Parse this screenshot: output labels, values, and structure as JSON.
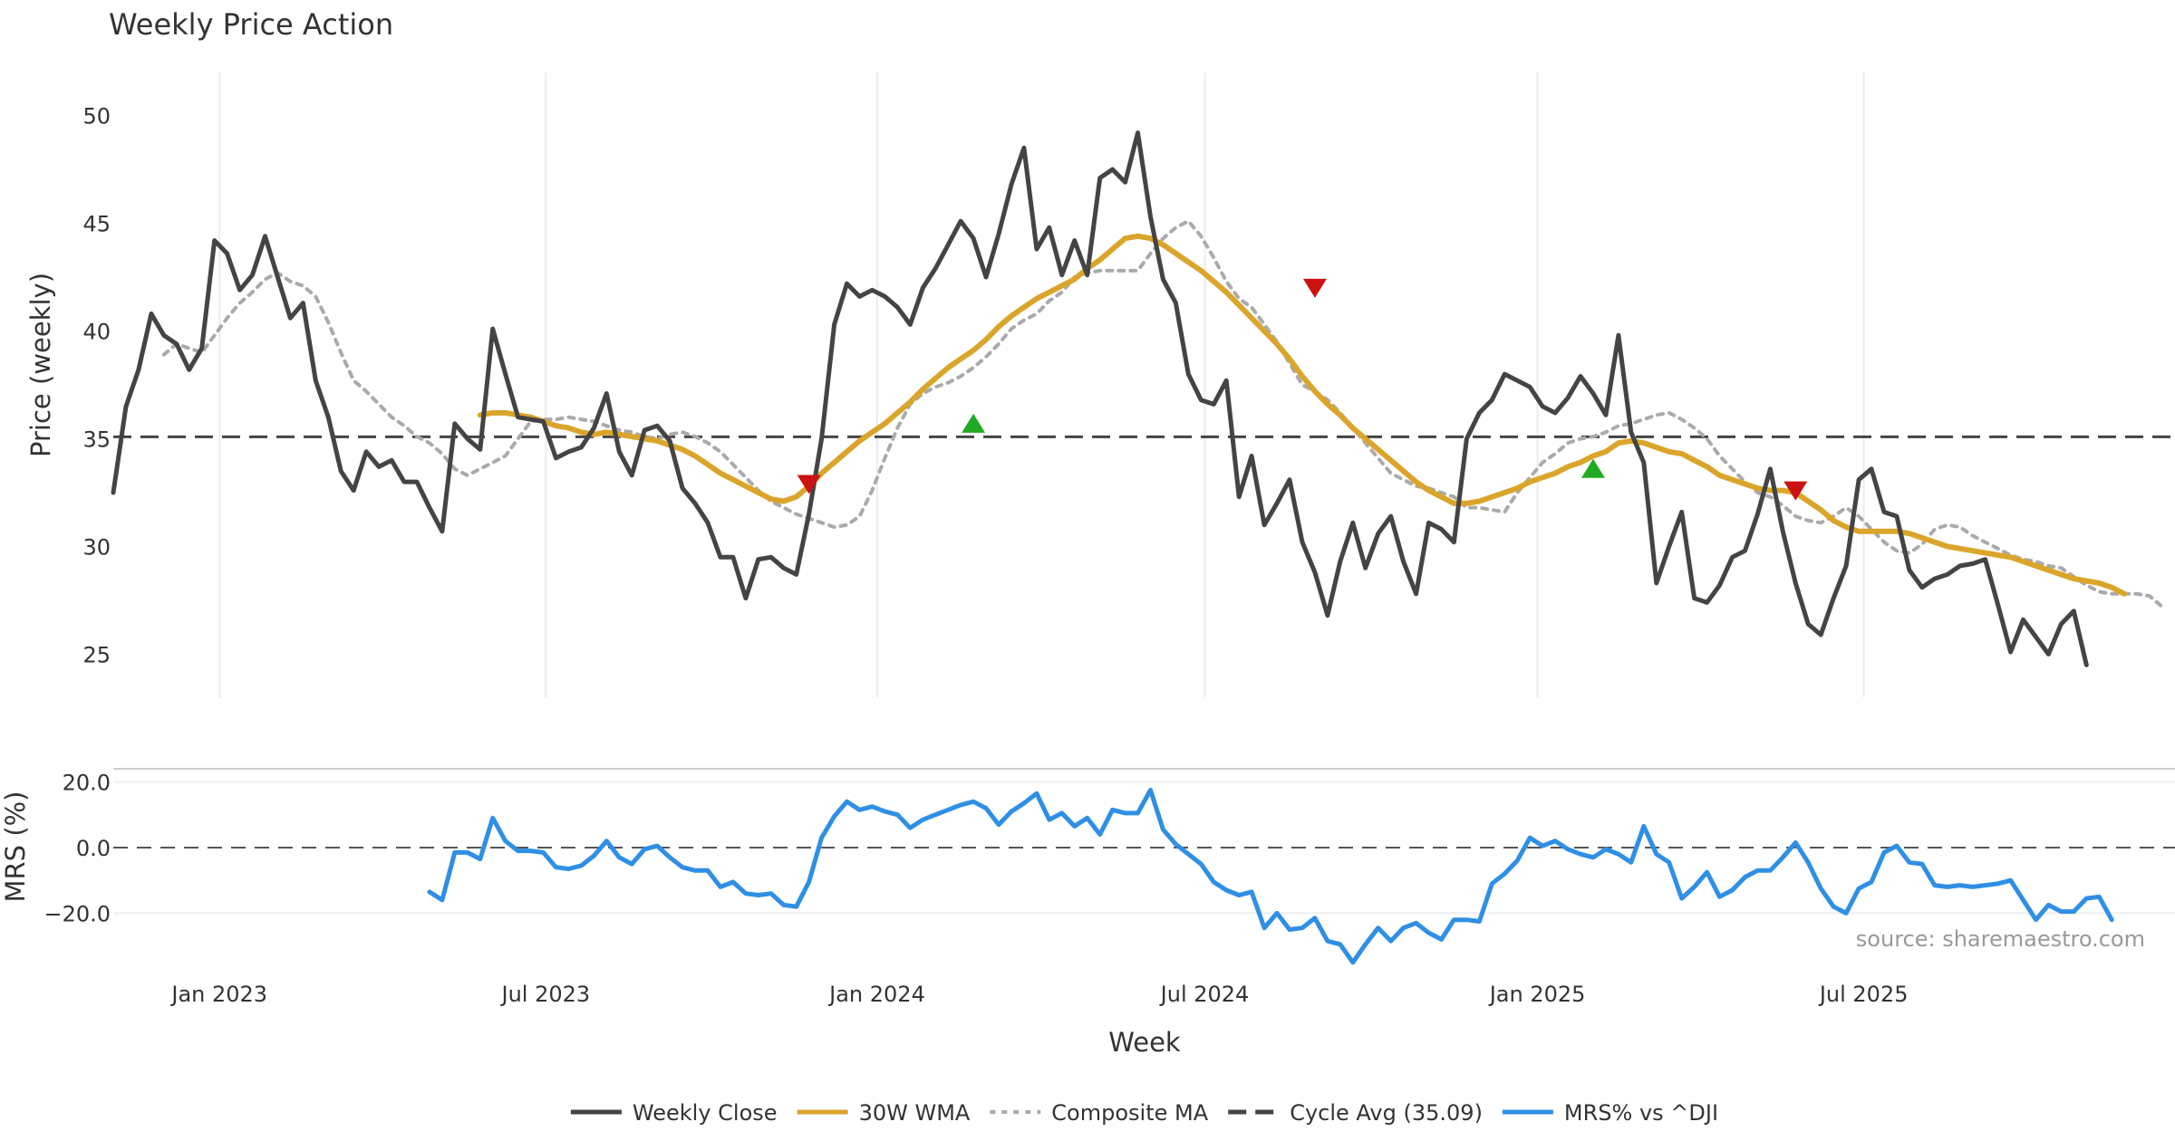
{
  "chart_data": [
    {
      "type": "line",
      "title": "Weekly Price Action",
      "ylabel": "Price (weekly)",
      "ylim": [
        23,
        52
      ],
      "yticks": [
        "25",
        "30",
        "35",
        "40",
        "45",
        "50"
      ],
      "cycle_avg": 35.09,
      "series": [
        {
          "name": "Weekly Close",
          "color": "#444444",
          "style": "solid",
          "start_week": 0,
          "values": [
            32.5,
            36.5,
            38.2,
            40.8,
            39.8,
            39.4,
            38.2,
            39.2,
            44.2,
            43.6,
            41.9,
            42.6,
            44.4,
            42.5,
            40.6,
            41.3,
            37.7,
            36.0,
            33.5,
            32.6,
            34.4,
            33.7,
            34.0,
            33.0,
            33.0,
            31.8,
            30.7,
            35.7,
            35.0,
            34.5,
            40.1,
            38.0,
            36.0,
            35.9,
            35.8,
            34.1,
            34.4,
            34.6,
            35.5,
            37.1,
            34.4,
            33.3,
            35.4,
            35.6,
            34.9,
            32.7,
            32.0,
            31.1,
            29.5,
            29.5,
            27.6,
            29.4,
            29.5,
            29.0,
            28.7,
            31.5,
            35.0,
            40.3,
            42.2,
            41.6,
            41.9,
            41.6,
            41.1,
            40.3,
            42.0,
            42.9,
            44.0,
            45.1,
            44.3,
            42.5,
            44.5,
            46.8,
            48.5,
            43.8,
            44.8,
            42.6,
            44.2,
            42.6,
            47.1,
            47.5,
            46.9,
            49.2,
            45.3,
            42.4,
            41.3,
            38.0,
            36.8,
            36.6,
            37.7,
            32.3,
            34.2,
            31.0,
            32.0,
            33.1,
            30.2,
            28.8,
            26.8,
            29.3,
            31.1,
            29.0,
            30.6,
            31.4,
            29.3,
            27.8,
            31.1,
            30.8,
            30.2,
            35.0,
            36.2,
            36.8,
            38.0,
            37.7,
            37.4,
            36.5,
            36.2,
            36.9,
            37.9,
            37.1,
            36.1,
            39.8,
            35.3,
            33.9,
            28.3,
            30.0,
            31.6,
            27.6,
            27.4,
            28.2,
            29.5,
            29.8,
            31.5,
            33.6,
            30.7,
            28.3,
            26.4,
            25.9,
            27.6,
            29.1,
            33.1,
            33.6,
            31.6,
            31.4,
            28.9,
            28.1,
            28.5,
            28.7,
            29.1,
            29.2,
            29.4,
            27.3,
            25.1,
            26.6,
            25.8,
            25.0,
            26.4,
            27.0,
            24.5
          ]
        },
        {
          "name": "30W WMA",
          "color": "#DAA52A",
          "style": "solid",
          "start_week": 29,
          "values": [
            36.1,
            36.2,
            36.2,
            36.1,
            36.0,
            35.8,
            35.6,
            35.5,
            35.3,
            35.2,
            35.3,
            35.2,
            35.1,
            35.0,
            34.9,
            34.7,
            34.5,
            34.2,
            33.8,
            33.4,
            33.1,
            32.8,
            32.5,
            32.2,
            32.1,
            32.3,
            32.8,
            33.4,
            33.9,
            34.4,
            34.9,
            35.3,
            35.7,
            36.2,
            36.7,
            37.3,
            37.8,
            38.3,
            38.7,
            39.1,
            39.6,
            40.2,
            40.7,
            41.1,
            41.5,
            41.8,
            42.1,
            42.4,
            42.9,
            43.3,
            43.8,
            44.3,
            44.4,
            44.3,
            44.0,
            43.6,
            43.2,
            42.8,
            42.3,
            41.8,
            41.2,
            40.6,
            40.0,
            39.4,
            38.7,
            37.9,
            37.2,
            36.6,
            36.1,
            35.5,
            35.0,
            34.5,
            34.0,
            33.5,
            33.0,
            32.6,
            32.3,
            32.0,
            32.0,
            32.1,
            32.3,
            32.5,
            32.7,
            33.0,
            33.2,
            33.4,
            33.7,
            33.9,
            34.2,
            34.4,
            34.8,
            34.9,
            34.8,
            34.6,
            34.4,
            34.3,
            34.0,
            33.7,
            33.3,
            33.1,
            32.9,
            32.7,
            32.6,
            32.6,
            32.5,
            32.1,
            31.7,
            31.2,
            30.9,
            30.7,
            30.7,
            30.7,
            30.7,
            30.6,
            30.4,
            30.2,
            30.0,
            29.9,
            29.8,
            29.7,
            29.6,
            29.5,
            29.3,
            29.1,
            28.9,
            28.7,
            28.5,
            28.4,
            28.3,
            28.1,
            27.8
          ]
        },
        {
          "name": "Composite MA",
          "color": "#AAAAAA",
          "style": "dotted",
          "start_week": 4,
          "values": [
            38.9,
            39.4,
            39.2,
            39.0,
            39.8,
            40.6,
            41.3,
            41.8,
            42.4,
            42.7,
            42.3,
            42.1,
            41.6,
            40.4,
            39.0,
            37.7,
            37.2,
            36.6,
            36.0,
            35.6,
            35.1,
            34.8,
            34.3,
            33.6,
            33.3,
            33.6,
            33.9,
            34.2,
            35.0,
            35.8,
            35.9,
            35.9,
            36.0,
            35.9,
            35.8,
            35.6,
            35.4,
            35.3,
            35.1,
            35.0,
            35.2,
            35.3,
            35.1,
            34.8,
            34.4,
            33.8,
            33.2,
            32.6,
            32.1,
            31.8,
            31.5,
            31.3,
            31.1,
            30.9,
            31.0,
            31.4,
            32.6,
            34.1,
            35.5,
            36.6,
            37.1,
            37.4,
            37.6,
            37.9,
            38.3,
            38.8,
            39.4,
            40.1,
            40.5,
            40.8,
            41.4,
            41.8,
            42.5,
            42.7,
            42.8,
            42.8,
            42.8,
            42.8,
            43.6,
            44.3,
            44.8,
            45.1,
            44.4,
            43.4,
            42.3,
            41.5,
            41.1,
            40.3,
            39.5,
            38.5,
            37.5,
            37.2,
            36.8,
            36.2,
            35.5,
            34.8,
            34.1,
            33.4,
            33.1,
            32.8,
            32.7,
            32.5,
            32.3,
            31.8,
            31.8,
            31.7,
            31.6,
            32.5,
            33.2,
            33.9,
            34.3,
            34.8,
            35.0,
            35.1,
            35.3,
            35.6,
            35.7,
            35.9,
            36.1,
            36.2,
            35.9,
            35.5,
            35.0,
            34.2,
            33.6,
            33.0,
            32.5,
            32.3,
            31.9,
            31.4,
            31.2,
            31.1,
            31.4,
            31.8,
            31.4,
            30.8,
            30.2,
            29.8,
            29.7,
            30.1,
            30.8,
            31.0,
            30.9,
            30.5,
            30.2,
            29.9,
            29.6,
            29.4,
            29.3,
            29.1,
            29.0,
            28.6,
            28.2,
            27.9,
            27.8,
            27.8,
            27.8,
            27.7,
            27.2
          ]
        }
      ],
      "signals": [
        {
          "week": 55,
          "value": 32.9,
          "type": "sell",
          "color": "#CC1111"
        },
        {
          "week": 68,
          "value": 35.7,
          "type": "buy",
          "color": "#22AA22"
        },
        {
          "week": 95,
          "value": 42.0,
          "type": "sell",
          "color": "#CC1111"
        },
        {
          "week": 117,
          "value": 33.6,
          "type": "buy",
          "color": "#22AA22"
        },
        {
          "week": 133,
          "value": 32.6,
          "type": "sell",
          "color": "#CC1111"
        }
      ]
    },
    {
      "type": "line",
      "ylabel": "MRS (%)",
      "ylim": [
        -37,
        24
      ],
      "yticks": [
        "20.0",
        "0.0",
        "−20.0"
      ],
      "xlabel": "Week",
      "x_axis": {
        "week_min": 0,
        "week_max": 163,
        "ticks": [
          {
            "label": "Jan 2023",
            "week": 8.4
          },
          {
            "label": "Jul 2023",
            "week": 34.2
          },
          {
            "label": "Jan 2024",
            "week": 60.4
          },
          {
            "label": "Jul 2024",
            "week": 86.3
          },
          {
            "label": "Jan 2025",
            "week": 112.6
          },
          {
            "label": "Jul 2025",
            "week": 138.4
          }
        ]
      },
      "series": [
        {
          "name": "MRS% vs ^DJI",
          "color": "#2E8FE5",
          "style": "solid",
          "start_week": 25,
          "values": [
            -13.5,
            -16.0,
            -1.5,
            -1.5,
            -3.5,
            9.0,
            2.0,
            -1.0,
            -1.0,
            -1.5,
            -6.0,
            -6.5,
            -5.5,
            -2.5,
            2.0,
            -3.0,
            -5.0,
            -0.5,
            0.5,
            -3.0,
            -6.0,
            -7.0,
            -7.0,
            -12.0,
            -10.5,
            -14.0,
            -14.5,
            -14.0,
            -17.5,
            -18.0,
            -10.5,
            3.0,
            9.5,
            14.0,
            11.5,
            12.5,
            11.0,
            10.0,
            6.0,
            8.5,
            10.0,
            11.5,
            13.0,
            14.0,
            12.0,
            7.0,
            11.0,
            13.5,
            16.5,
            8.5,
            10.5,
            6.5,
            9.0,
            4.0,
            11.5,
            10.5,
            10.5,
            17.5,
            5.5,
            1.0,
            -2.0,
            -5.0,
            -10.5,
            -13.0,
            -14.5,
            -13.5,
            -24.5,
            -20.0,
            -25.0,
            -24.5,
            -21.5,
            -28.5,
            -29.5,
            -35.0,
            -29.5,
            -24.5,
            -28.5,
            -24.5,
            -23.0,
            -26.0,
            -28.0,
            -22.0,
            -22.0,
            -22.5,
            -11.0,
            -8.0,
            -4.0,
            3.0,
            0.5,
            2.0,
            -0.5,
            -2.0,
            -3.0,
            -0.5,
            -2.0,
            -4.5,
            6.5,
            -2.0,
            -4.5,
            -15.5,
            -12.0,
            -7.5,
            -15.0,
            -13.0,
            -9.0,
            -7.0,
            -7.0,
            -3.0,
            1.5,
            -4.5,
            -12.5,
            -18.0,
            -20.0,
            -12.5,
            -10.5,
            -1.5,
            0.5,
            -4.5,
            -5.0,
            -11.5,
            -12.0,
            -11.5,
            -12.0,
            -11.5,
            -11.0,
            -10.0,
            -16.0,
            -22.0,
            -17.5,
            -19.5,
            -19.5,
            -15.5,
            -15.0,
            -22.0
          ]
        }
      ],
      "zero_line": 0
    }
  ],
  "legend": [
    {
      "label": "Weekly Close",
      "style": "solid",
      "color": "#444444"
    },
    {
      "label": "30W WMA",
      "style": "solid",
      "color": "#DAA52A"
    },
    {
      "label": "Composite MA",
      "style": "dotted",
      "color": "#AAAAAA"
    },
    {
      "label": "Cycle Avg (35.09)",
      "style": "dashed",
      "color": "#444444"
    },
    {
      "label": "MRS% vs ^DJI",
      "style": "solid",
      "color": "#2E8FE5"
    }
  ],
  "source": "source: sharemaestro.com"
}
